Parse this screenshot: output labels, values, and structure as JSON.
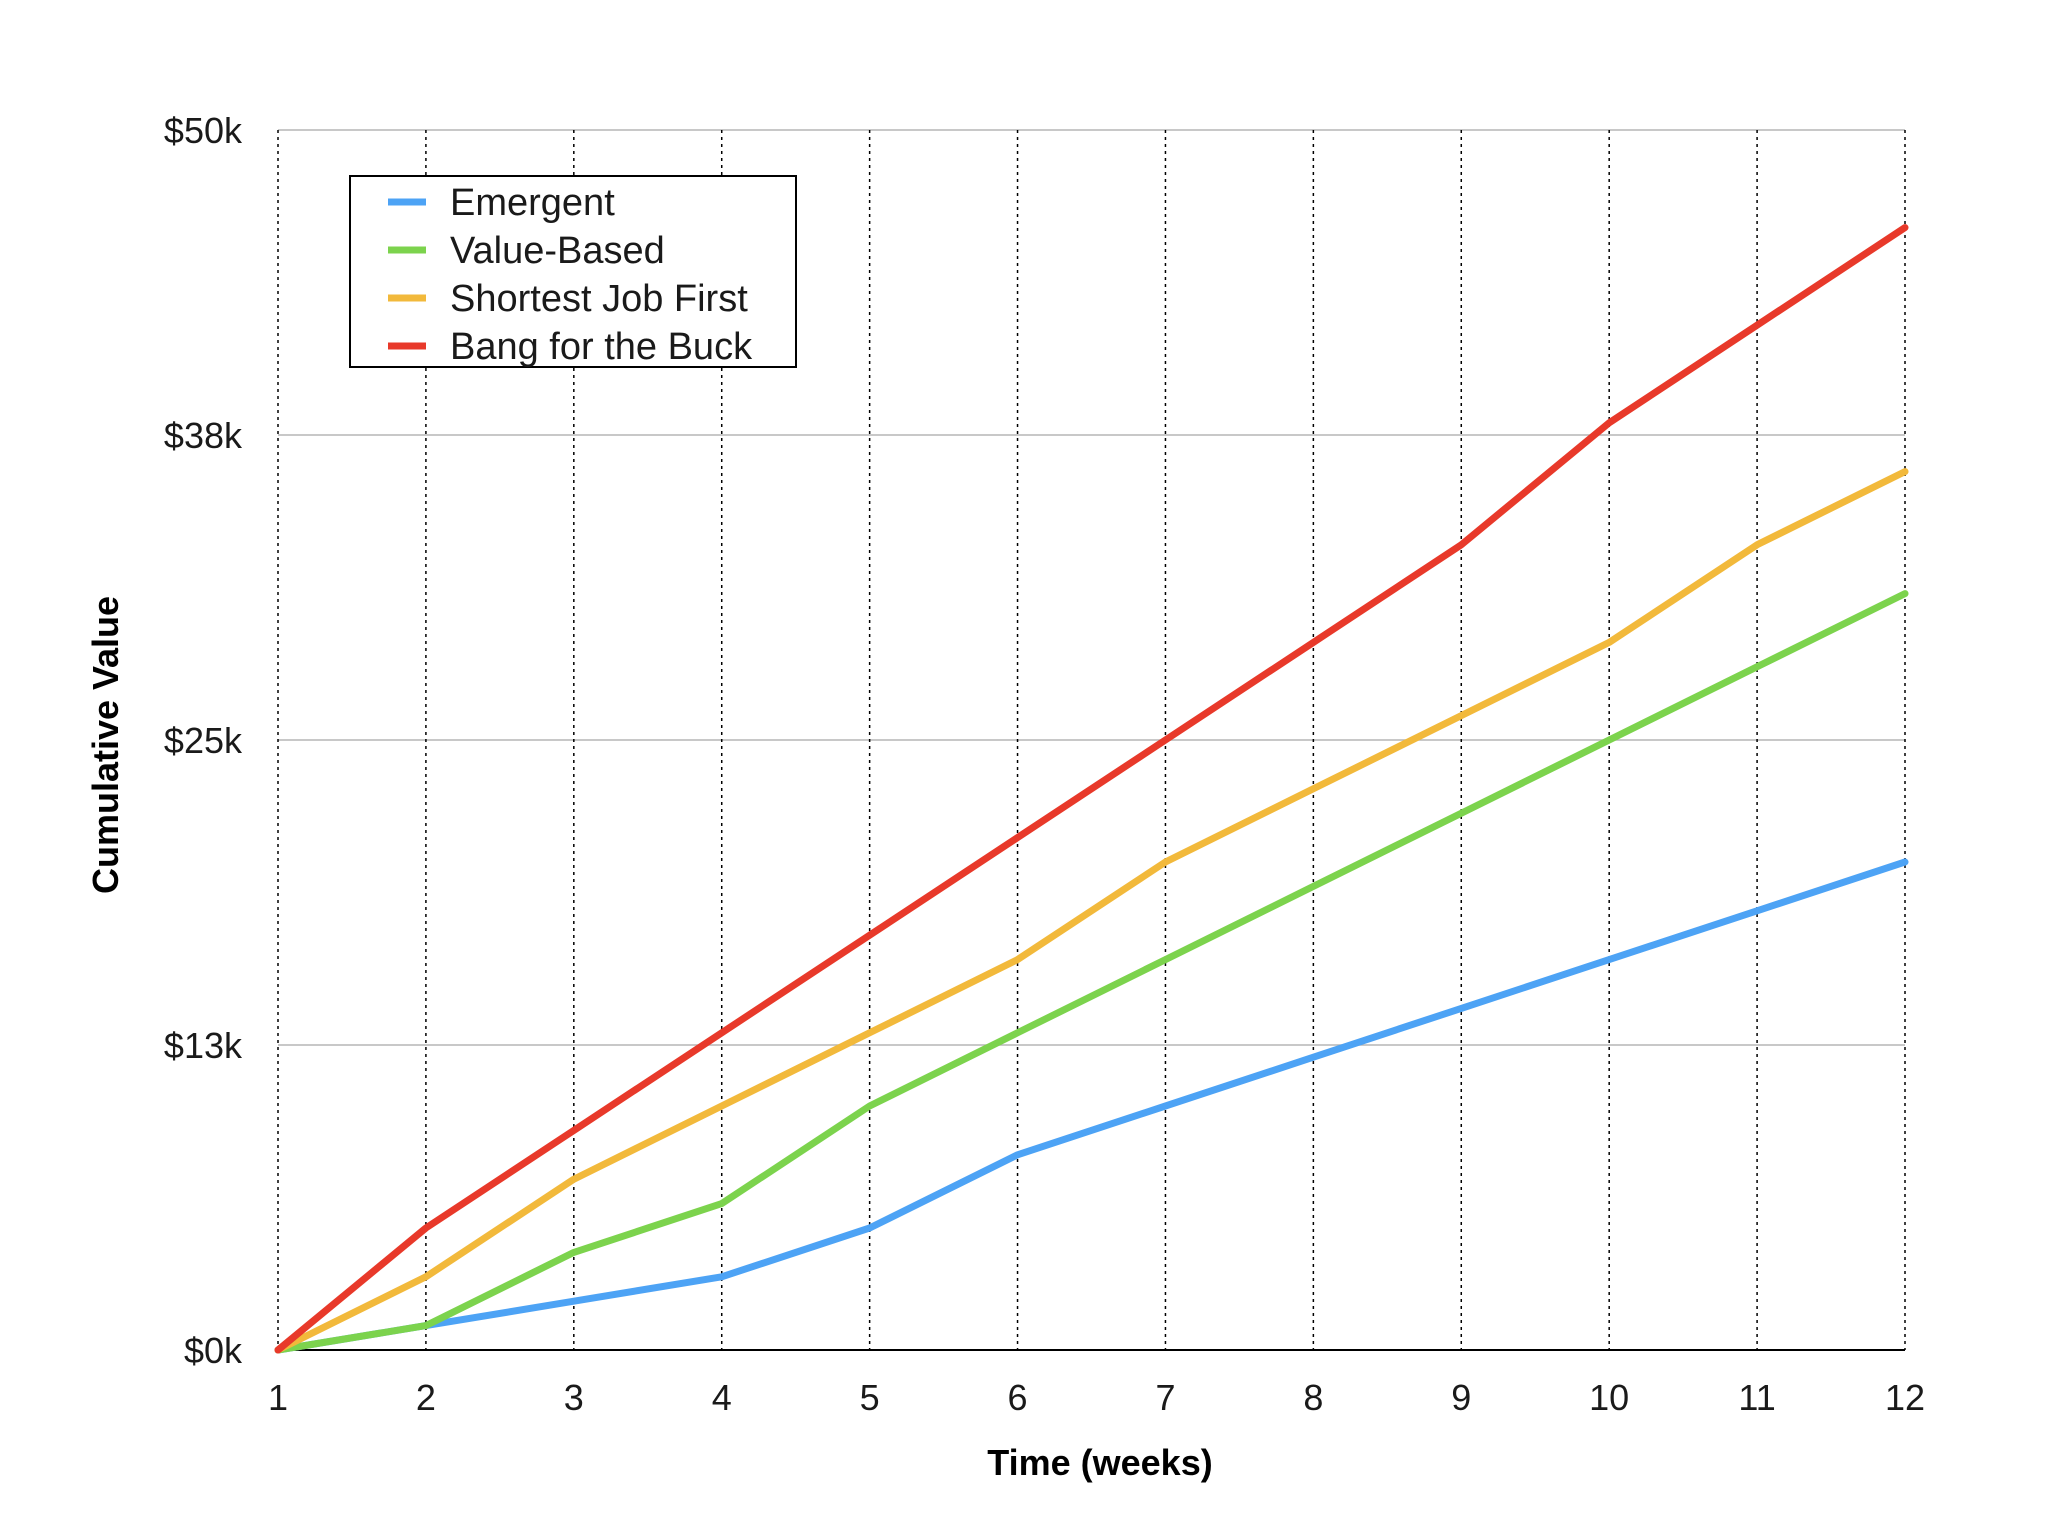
{
  "chart_data": {
    "type": "line",
    "xlabel": "Time (weeks)",
    "ylabel": "Cumulative Value",
    "x": [
      1,
      2,
      3,
      4,
      5,
      6,
      7,
      8,
      9,
      10,
      11,
      12
    ],
    "x_tick_labels": [
      "1",
      "2",
      "3",
      "4",
      "5",
      "6",
      "7",
      "8",
      "9",
      "10",
      "11",
      "12"
    ],
    "ylim": [
      0,
      50000
    ],
    "y_ticks": [
      0,
      12500,
      25000,
      37500,
      50000
    ],
    "y_tick_labels": [
      "$0k",
      "$13k",
      "$25k",
      "$38k",
      "$50k"
    ],
    "grid": {
      "horizontal": "solid",
      "vertical": "dotted"
    },
    "legend_position": "top-left",
    "series": [
      {
        "name": "Emergent",
        "color": "#4DA3F5",
        "values": [
          0,
          1000,
          2000,
          3000,
          5000,
          8000,
          10000,
          12000,
          14000,
          16000,
          18000,
          20000
        ]
      },
      {
        "name": "Value-Based",
        "color": "#7CD34D",
        "values": [
          0,
          1000,
          4000,
          6000,
          10000,
          13000,
          16000,
          19000,
          22000,
          25000,
          28000,
          31000
        ]
      },
      {
        "name": "Shortest Job First",
        "color": "#F2B93B",
        "values": [
          0,
          3000,
          7000,
          10000,
          13000,
          16000,
          20000,
          23000,
          26000,
          29000,
          33000,
          36000
        ]
      },
      {
        "name": "Bang for the Buck",
        "color": "#E8392A",
        "values": [
          0,
          5000,
          9000,
          13000,
          17000,
          21000,
          25000,
          29000,
          33000,
          38000,
          42000,
          46000
        ]
      }
    ]
  }
}
